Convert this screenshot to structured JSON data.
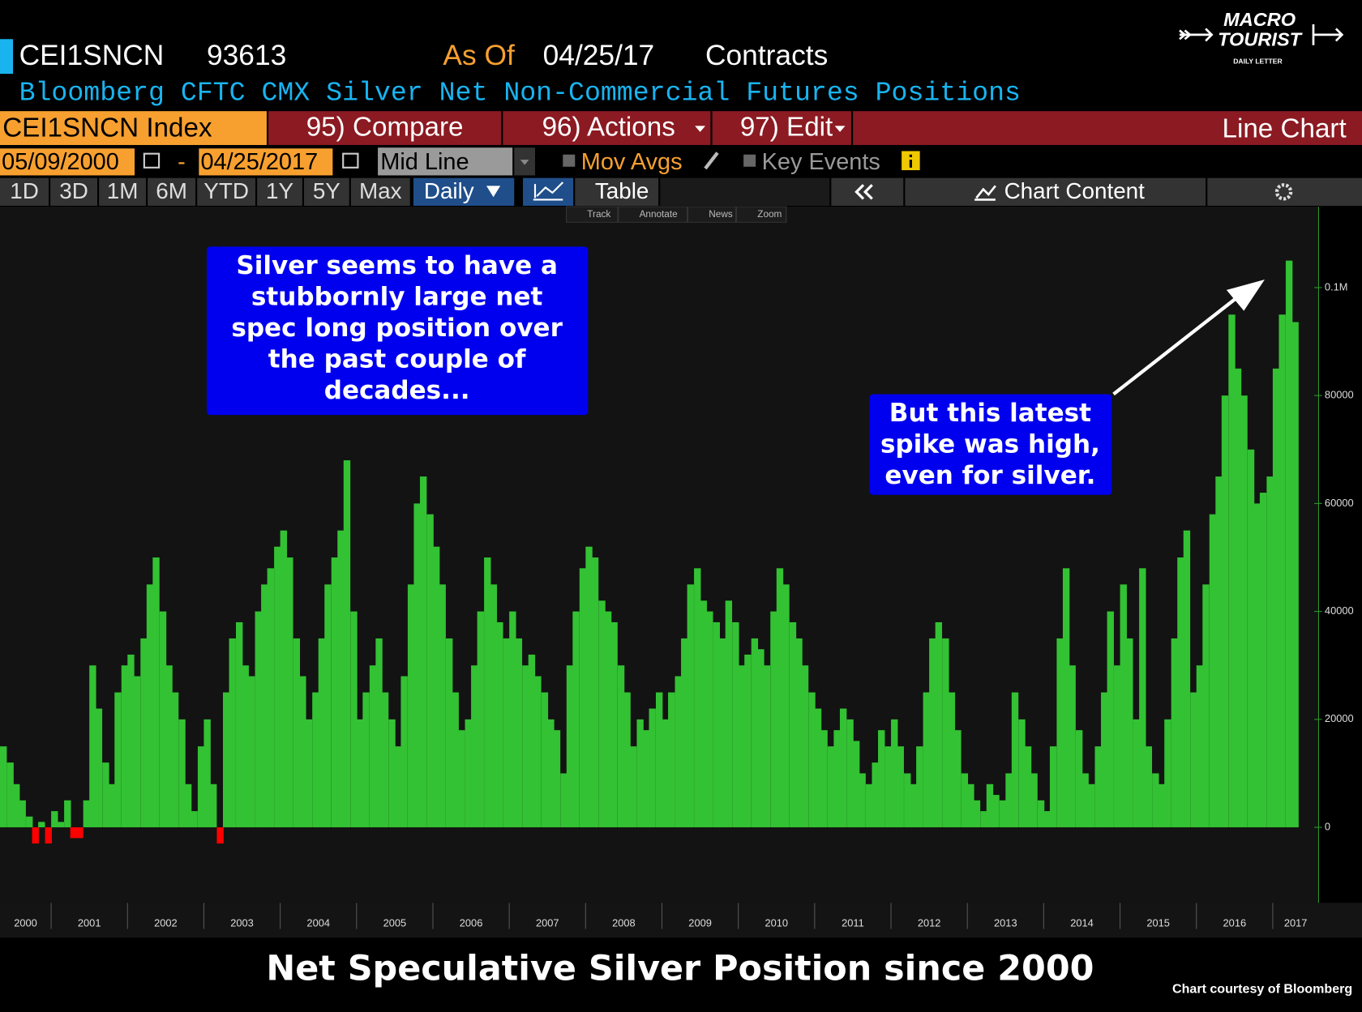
{
  "header": {
    "ticker": "CEI1SNCN",
    "value": "93613",
    "as_of_label": "As Of",
    "as_of_date": "04/25/17",
    "units": "Contracts",
    "description": "Bloomberg CFTC CMX Silver Net Non-Commercial Futures Positions"
  },
  "menu": {
    "security": "CEI1SNCN Index",
    "compare": "95) Compare",
    "actions": "96) Actions",
    "edit": "97) Edit",
    "view": "Line Chart"
  },
  "controls": {
    "start_date": "05/09/2000",
    "separator": "-",
    "end_date": "04/25/2017",
    "mode": "Mid Line",
    "mov_avgs": "Mov Avgs",
    "key_events": "Key Events"
  },
  "tabs": [
    "1D",
    "3D",
    "1M",
    "6M",
    "YTD",
    "1Y",
    "5Y",
    "Max"
  ],
  "period": "Daily",
  "table": "Table",
  "chart_content": "Chart Content",
  "tools": [
    "Track",
    "Annotate",
    "News",
    "Zoom"
  ],
  "logo": {
    "line1": "MACRO",
    "line2": "TOURIST",
    "line3": "DAILY LETTER"
  },
  "credit": "Chart courtesy of Bloomberg",
  "chart_data": {
    "type": "area",
    "title": "Net Speculative Silver Position since 2000",
    "x": [
      2000.33,
      2000.42,
      2000.5,
      2000.58,
      2000.67,
      2000.75,
      2000.83,
      2000.92,
      2001,
      2001.08,
      2001.17,
      2001.25,
      2001.33,
      2001.42,
      2001.5,
      2001.58,
      2001.67,
      2001.75,
      2001.83,
      2001.92,
      2002,
      2002.08,
      2002.17,
      2002.25,
      2002.33,
      2002.42,
      2002.5,
      2002.58,
      2002.67,
      2002.75,
      2002.83,
      2002.92,
      2003,
      2003.08,
      2003.17,
      2003.25,
      2003.33,
      2003.42,
      2003.5,
      2003.58,
      2003.67,
      2003.75,
      2003.83,
      2003.92,
      2004,
      2004.08,
      2004.17,
      2004.25,
      2004.33,
      2004.42,
      2004.5,
      2004.58,
      2004.67,
      2004.75,
      2004.83,
      2004.92,
      2005,
      2005.08,
      2005.17,
      2005.25,
      2005.33,
      2005.42,
      2005.5,
      2005.58,
      2005.67,
      2005.75,
      2005.83,
      2005.92,
      2006,
      2006.08,
      2006.17,
      2006.25,
      2006.33,
      2006.42,
      2006.5,
      2006.58,
      2006.67,
      2006.75,
      2006.83,
      2006.92,
      2007,
      2007.08,
      2007.17,
      2007.25,
      2007.33,
      2007.42,
      2007.5,
      2007.58,
      2007.67,
      2007.75,
      2007.83,
      2007.92,
      2008,
      2008.08,
      2008.17,
      2008.25,
      2008.33,
      2008.42,
      2008.5,
      2008.58,
      2008.67,
      2008.75,
      2008.83,
      2008.92,
      2009,
      2009.08,
      2009.17,
      2009.25,
      2009.33,
      2009.42,
      2009.5,
      2009.58,
      2009.67,
      2009.75,
      2009.83,
      2009.92,
      2010,
      2010.08,
      2010.17,
      2010.25,
      2010.33,
      2010.42,
      2010.5,
      2010.58,
      2010.67,
      2010.75,
      2010.83,
      2010.92,
      2011,
      2011.08,
      2011.17,
      2011.25,
      2011.33,
      2011.42,
      2011.5,
      2011.58,
      2011.67,
      2011.75,
      2011.83,
      2011.92,
      2012,
      2012.08,
      2012.17,
      2012.25,
      2012.33,
      2012.42,
      2012.5,
      2012.58,
      2012.67,
      2012.75,
      2012.83,
      2012.92,
      2013,
      2013.08,
      2013.17,
      2013.25,
      2013.33,
      2013.42,
      2013.5,
      2013.58,
      2013.67,
      2013.75,
      2013.83,
      2013.92,
      2014,
      2014.08,
      2014.17,
      2014.25,
      2014.33,
      2014.42,
      2014.5,
      2014.58,
      2014.67,
      2014.75,
      2014.83,
      2014.92,
      2015,
      2015.08,
      2015.17,
      2015.25,
      2015.33,
      2015.42,
      2015.5,
      2015.58,
      2015.67,
      2015.75,
      2015.83,
      2015.92,
      2016,
      2016.08,
      2016.17,
      2016.25,
      2016.33,
      2016.42,
      2016.5,
      2016.58,
      2016.67,
      2016.75,
      2016.83,
      2016.92,
      2017,
      2017.08,
      2017.17,
      2017.25
    ],
    "series": [
      {
        "color": "#33c233",
        "negative_color": "#ff0000",
        "values": [
          15000,
          12000,
          8000,
          5000,
          2000,
          -3000,
          1000,
          -3000,
          3000,
          1000,
          5000,
          -2000,
          -2000,
          5000,
          30000,
          22000,
          12000,
          8000,
          25000,
          30000,
          32000,
          28000,
          35000,
          45000,
          50000,
          40000,
          30000,
          25000,
          20000,
          8000,
          3000,
          15000,
          20000,
          8000,
          -3000,
          25000,
          35000,
          38000,
          30000,
          28000,
          40000,
          45000,
          48000,
          52000,
          55000,
          50000,
          35000,
          28000,
          20000,
          25000,
          35000,
          45000,
          50000,
          55000,
          68000,
          40000,
          20000,
          25000,
          30000,
          35000,
          25000,
          20000,
          15000,
          28000,
          45000,
          60000,
          65000,
          58000,
          52000,
          45000,
          35000,
          25000,
          18000,
          20000,
          30000,
          40000,
          50000,
          45000,
          38000,
          35000,
          40000,
          35000,
          30000,
          32000,
          28000,
          25000,
          20000,
          18000,
          10000,
          30000,
          40000,
          48000,
          52000,
          50000,
          42000,
          40000,
          38000,
          30000,
          25000,
          15000,
          20000,
          18000,
          22000,
          25000,
          20000,
          25000,
          28000,
          35000,
          45000,
          48000,
          42000,
          40000,
          38000,
          35000,
          42000,
          38000,
          30000,
          32000,
          35000,
          33000,
          30000,
          40000,
          48000,
          45000,
          38000,
          35000,
          30000,
          25000,
          22000,
          18000,
          15000,
          18000,
          22000,
          20000,
          16000,
          10000,
          8000,
          12000,
          18000,
          15000,
          20000,
          15000,
          10000,
          8000,
          15000,
          25000,
          35000,
          38000,
          35000,
          25000,
          18000,
          10000,
          8000,
          5000,
          3000,
          8000,
          6000,
          5000,
          10000,
          25000,
          20000,
          15000,
          10000,
          5000,
          3000,
          15000,
          35000,
          48000,
          30000,
          18000,
          10000,
          8000,
          15000,
          25000,
          40000,
          30000,
          45000,
          35000,
          20000,
          48000,
          15000,
          10000,
          8000,
          20000,
          35000,
          50000,
          55000,
          25000,
          30000,
          45000,
          58000,
          65000,
          80000,
          95000,
          85000,
          80000,
          70000,
          60000,
          62000,
          65000,
          85000,
          95000,
          105000,
          93613
        ]
      }
    ],
    "xlim": [
      2000.33,
      2017.6
    ],
    "xticks": [
      2000,
      2001,
      2002,
      2003,
      2004,
      2005,
      2006,
      2007,
      2008,
      2009,
      2010,
      2011,
      2012,
      2013,
      2014,
      2015,
      2016,
      2017
    ],
    "ylim": [
      -14000,
      115000
    ],
    "yticks": [
      0,
      20000,
      40000,
      60000,
      80000,
      {
        "value": 100000,
        "label": "0.1M"
      }
    ],
    "annotations": [
      {
        "lines": [
          "Silver seems to have a",
          "stubbornly large net",
          "spec long position over",
          "the past couple of",
          "decades..."
        ]
      },
      {
        "lines": [
          "But this latest",
          "spike was high,",
          "even for silver."
        ]
      }
    ]
  }
}
